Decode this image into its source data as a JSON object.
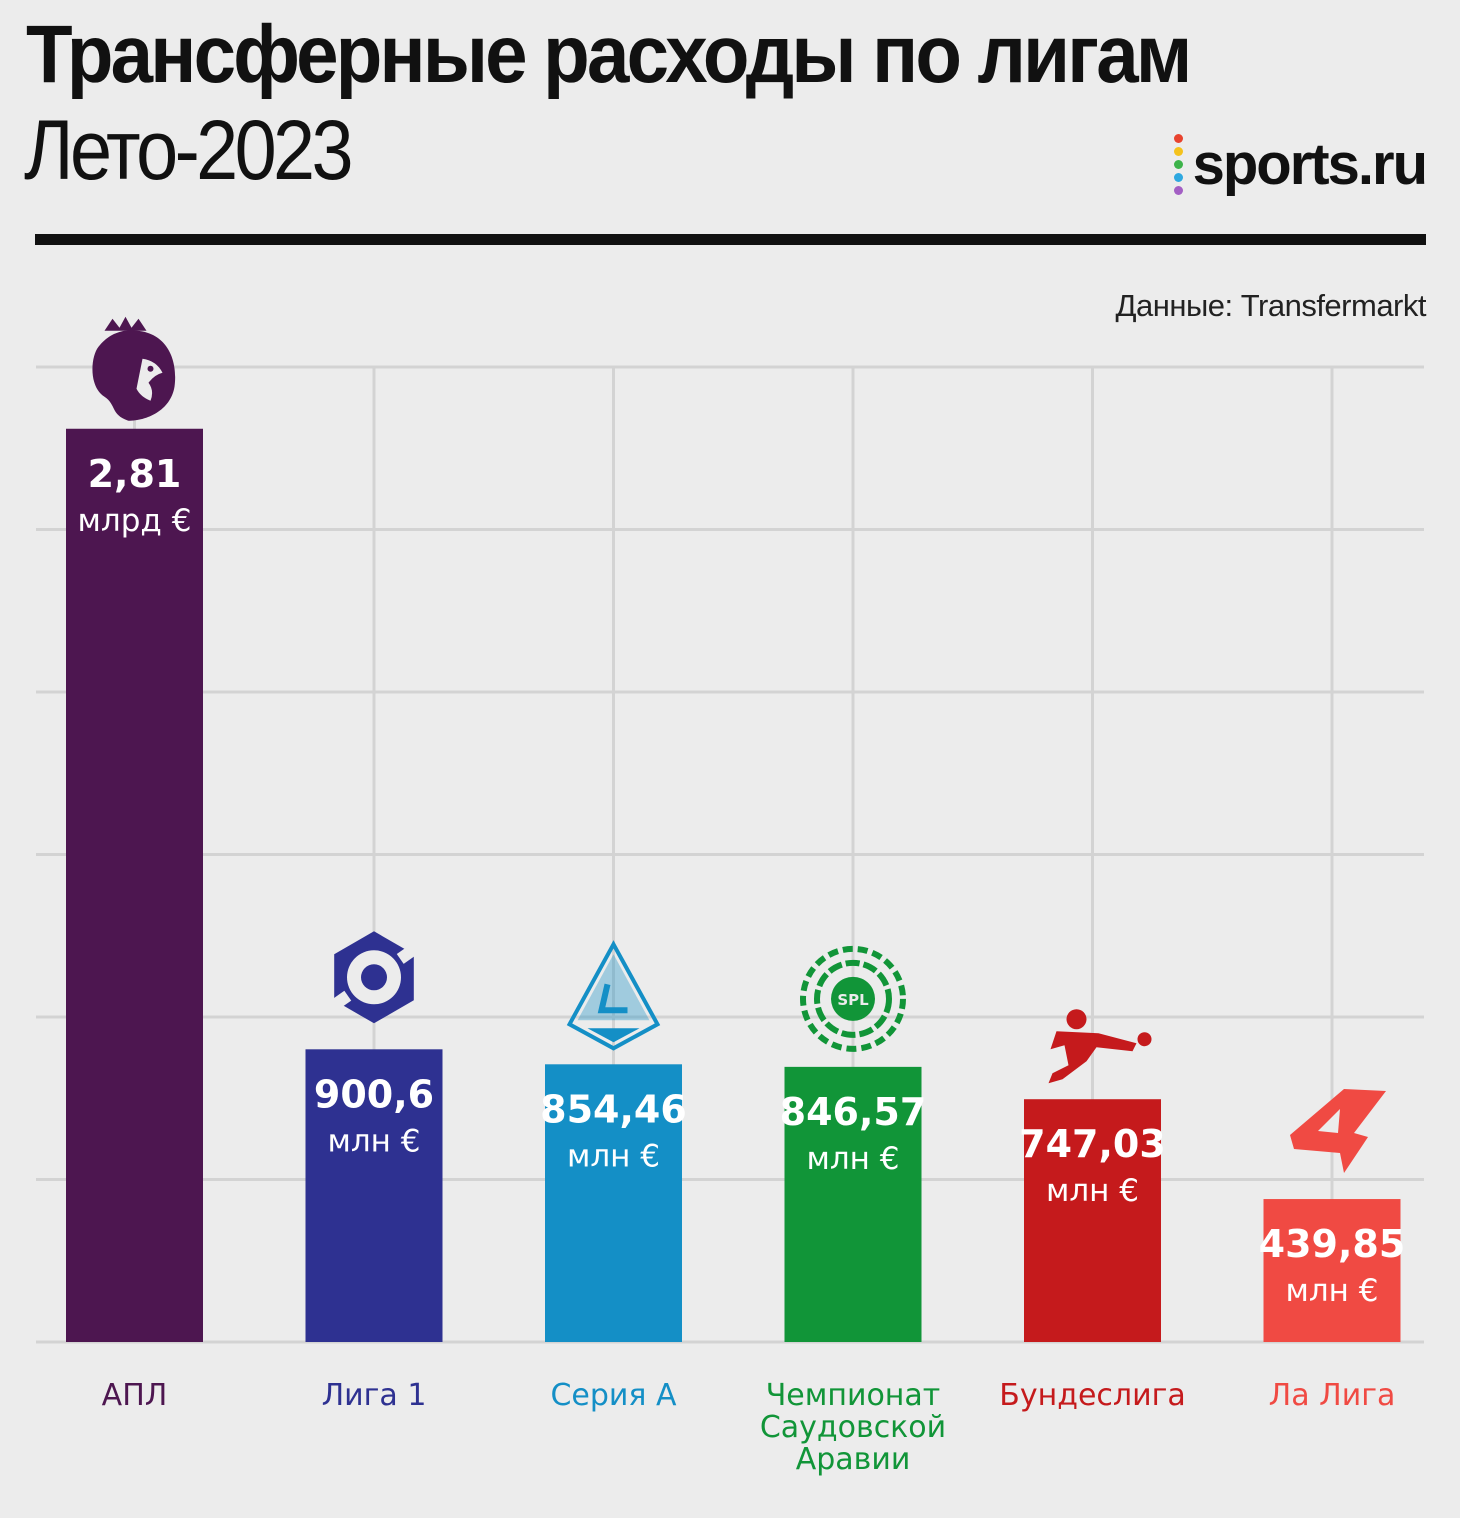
{
  "header": {
    "title": "Трансферные расходы по лигам",
    "subtitle": "Лето-2023",
    "source": "Данные: Transfermarkt",
    "logo_text": "sports.ru",
    "logo_dot_colors": [
      "#e8432e",
      "#f4c21c",
      "#3db34a",
      "#2ea8e0",
      "#a35fc4"
    ]
  },
  "chart_data": {
    "type": "bar",
    "title": "Трансферные расходы по лигам",
    "subtitle": "Лето-2023",
    "unit": "млн €",
    "ylim": [
      0,
      3000
    ],
    "grid": true,
    "categories": [
      "АПЛ",
      "Лига 1",
      "Серия А",
      "Чемпионат Саудовской Аравии",
      "Бундеслига",
      "Ла Лига"
    ],
    "values": [
      2810,
      900.6,
      854.46,
      846.57,
      747.03,
      439.85
    ],
    "value_labels": [
      [
        "2,81",
        "млрд €"
      ],
      [
        "900,6",
        "млн €"
      ],
      [
        "854,46",
        "млн €"
      ],
      [
        "846,57",
        "млн €"
      ],
      [
        "747,03",
        "млн €"
      ],
      [
        "439,85",
        "млн €"
      ]
    ],
    "category_label_lines": [
      [
        "АПЛ"
      ],
      [
        "Лига 1"
      ],
      [
        "Серия А"
      ],
      [
        "Чемпионат",
        "Саудовской",
        "Аравии"
      ],
      [
        "Бундеслига"
      ],
      [
        "Ла Лига"
      ]
    ],
    "colors": [
      "#4d1650",
      "#2e3191",
      "#148fc6",
      "#119538",
      "#c51a1c",
      "#f04a43"
    ],
    "label_colors": [
      "#4d1650",
      "#2e3191",
      "#148fc6",
      "#119538",
      "#c51a1c",
      "#f04a43"
    ],
    "icons": [
      "premier-league-lion-icon",
      "ligue-1-logo-icon",
      "serie-a-logo-icon",
      "spl-logo-icon",
      "bundesliga-player-icon",
      "laliga-logo-icon"
    ]
  }
}
